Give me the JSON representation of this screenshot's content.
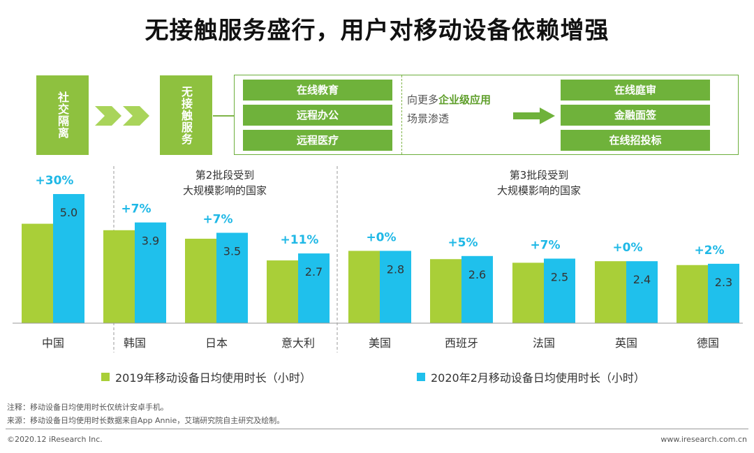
{
  "title": "无接触服务盛行，用户对移动设备依赖增强",
  "flow": {
    "box1": "社交隔离",
    "box2": "无接触服务",
    "left_items": [
      "在线教育",
      "远程办公",
      "远程医疗"
    ],
    "middle_text_plain1": "向更多",
    "middle_text_bold": "企业级应用",
    "middle_text_plain2": "场景渗透",
    "right_items": [
      "在线庭审",
      "金融面签",
      "在线招投标"
    ]
  },
  "colors": {
    "series2019": "#a9cf38",
    "series2020": "#1fc0ec",
    "growth_label": "#1fb8e6",
    "flow_green": "#8ec13f",
    "flow_dark_green": "#6fb23b"
  },
  "group_labels": {
    "batch2": [
      "第2批段受到",
      "大规模影响的国家"
    ],
    "batch3": [
      "第3批段受到",
      "大规模影响的国家"
    ]
  },
  "chart_data": {
    "type": "bar",
    "categories": [
      "中国",
      "韩国",
      "日本",
      "意大利",
      "美国",
      "西班牙",
      "法国",
      "英国",
      "德国"
    ],
    "series": [
      {
        "name": "2019年移动设备日均使用时长（小时）",
        "values": [
          3.85,
          3.6,
          3.27,
          2.43,
          2.8,
          2.48,
          2.34,
          2.4,
          2.25
        ]
      },
      {
        "name": "2020年2月移动设备日均使用时长（小时）",
        "values": [
          5.0,
          3.9,
          3.5,
          2.7,
          2.8,
          2.6,
          2.5,
          2.4,
          2.3
        ]
      }
    ],
    "value_labels": [
      "5.0",
      "3.9",
      "3.5",
      "2.7",
      "2.8",
      "2.6",
      "2.5",
      "2.4",
      "2.3"
    ],
    "growth_labels": [
      "+30%",
      "+7%",
      "+7%",
      "+11%",
      "+0%",
      "+5%",
      "+7%",
      "+0%",
      "+2%"
    ],
    "ylim": [
      0,
      5.0
    ],
    "legend_position": "bottom"
  },
  "notes": {
    "note1": "注释：移动设备日均使用时长仅统计安卓手机。",
    "note2": "来源：移动设备日均使用时长数据来自App Annie，艾瑞研究院自主研究及绘制。"
  },
  "footer": {
    "copyright": "©2020.12 iResearch Inc.",
    "website": "www.iresearch.com.cn"
  }
}
